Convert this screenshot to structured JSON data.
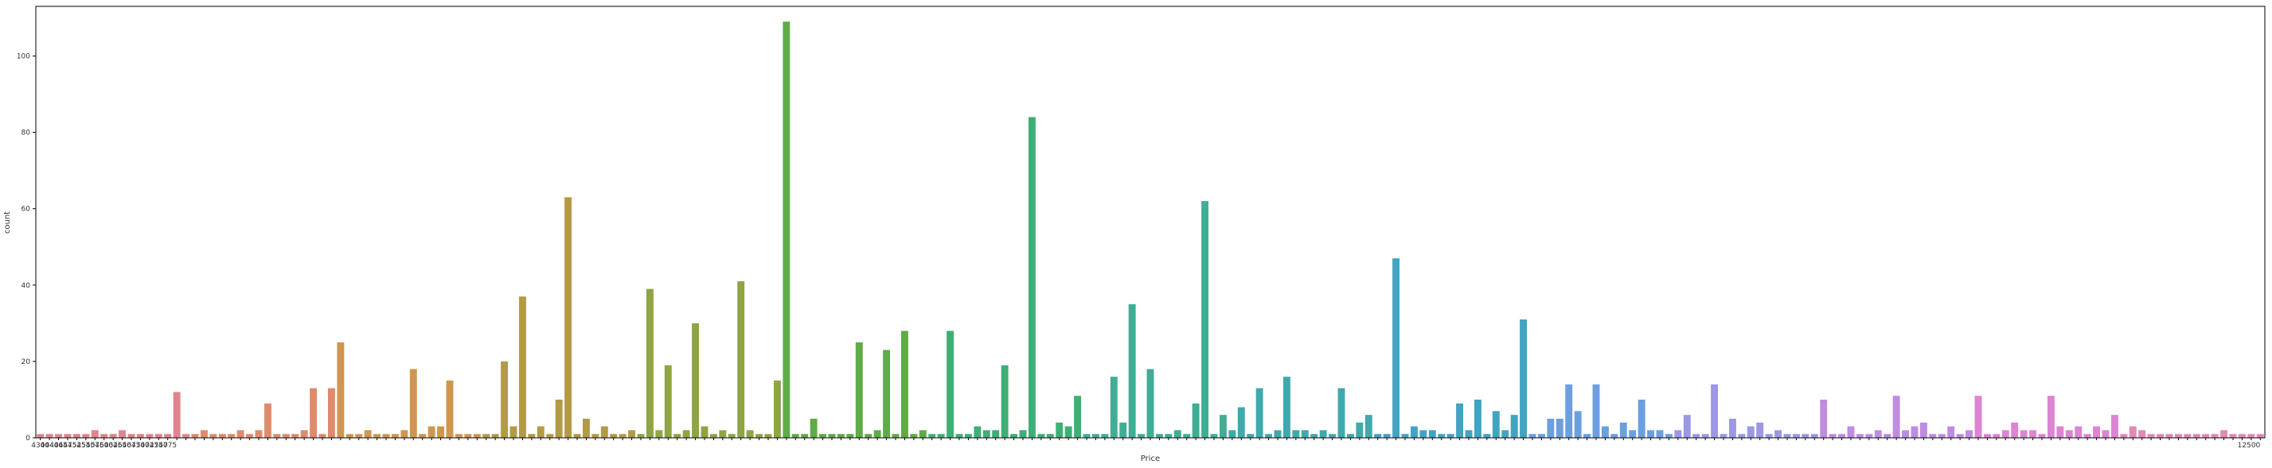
{
  "chart_data": {
    "type": "bar",
    "xlabel": "Price",
    "ylabel": "count",
    "ylim": [
      0,
      113
    ],
    "yticks": [
      0,
      20,
      40,
      60,
      80,
      100
    ],
    "grid": false,
    "values": [
      1,
      1,
      1,
      1,
      1,
      1,
      2,
      1,
      1,
      2,
      1,
      1,
      1,
      1,
      1,
      12,
      1,
      1,
      2,
      1,
      1,
      1,
      2,
      1,
      2,
      9,
      1,
      1,
      1,
      2,
      13,
      1,
      13,
      25,
      1,
      1,
      2,
      1,
      1,
      1,
      2,
      18,
      1,
      3,
      3,
      15,
      1,
      1,
      1,
      1,
      1,
      20,
      3,
      37,
      1,
      3,
      1,
      10,
      63,
      1,
      5,
      1,
      3,
      1,
      1,
      2,
      1,
      39,
      2,
      19,
      1,
      2,
      30,
      3,
      1,
      2,
      1,
      41,
      2,
      1,
      1,
      15,
      109,
      1,
      1,
      5,
      1,
      1,
      1,
      1,
      25,
      1,
      2,
      23,
      1,
      28,
      1,
      2,
      1,
      1,
      28,
      1,
      1,
      3,
      2,
      2,
      19,
      1,
      2,
      84,
      1,
      1,
      4,
      3,
      11,
      1,
      1,
      1,
      16,
      4,
      35,
      1,
      18,
      1,
      1,
      2,
      1,
      9,
      62,
      1,
      6,
      2,
      8,
      1,
      13,
      1,
      2,
      16,
      2,
      2,
      1,
      2,
      1,
      13,
      1,
      4,
      6,
      1,
      1,
      47,
      1,
      3,
      2,
      2,
      1,
      1,
      9,
      2,
      10,
      1,
      7,
      2,
      6,
      31,
      1,
      1,
      5,
      5,
      14,
      7,
      1,
      14,
      3,
      1,
      4,
      2,
      10,
      2,
      2,
      1,
      2,
      6,
      1,
      1,
      14,
      1,
      5,
      1,
      3,
      4,
      1,
      2,
      1,
      1,
      1,
      1,
      10,
      1,
      1,
      3,
      1,
      1,
      2,
      1,
      11,
      2,
      3,
      4,
      1,
      1,
      3,
      1,
      2,
      11,
      1,
      1,
      2,
      4,
      2,
      2,
      1,
      11,
      3,
      2,
      3,
      1,
      3,
      2,
      6,
      1,
      3,
      2,
      1,
      1,
      1,
      1,
      1,
      1,
      1,
      1,
      2,
      1,
      1,
      1,
      1
    ],
    "colors": [
      "#e1848e",
      "#de8b6c",
      "#d0964f",
      "#b39a44",
      "#8fa443",
      "#5fab46",
      "#3faf76",
      "#3fae94",
      "#40a9ad",
      "#42a3c2",
      "#6b9fe0",
      "#9b98e5",
      "#bf8ce1",
      "#dd84d2",
      "#e488b8"
    ],
    "tick_labels_sample": [
      "4300",
      "4440",
      "4465",
      "4475",
      "4525",
      "4550",
      "4575",
      "4600",
      "4625",
      "4650",
      "4675",
      "4700",
      "4725",
      "4750",
      "4775"
    ],
    "last_tick_label": "12500"
  }
}
